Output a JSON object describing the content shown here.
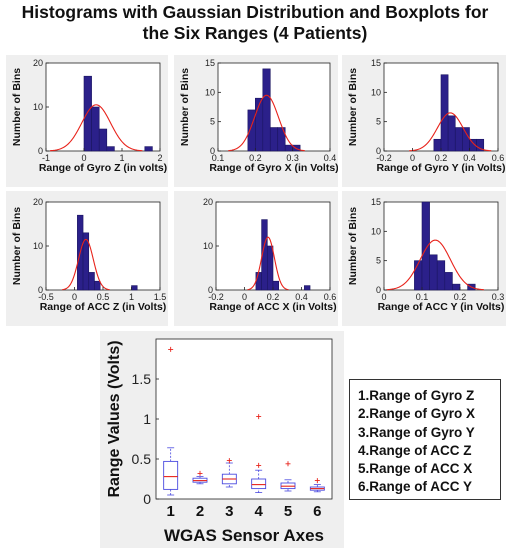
{
  "title": {
    "line1": "Histograms with Gaussian Distribution and Boxplots for",
    "line2": "the Six Ranges (4 Patients)"
  },
  "colors": {
    "bar": "#2b208a",
    "bar_edge": "#1a1460",
    "curve": "#e8231b",
    "box": "#4a4ae0",
    "median": "#e8231b",
    "outlier": "#e8231b",
    "panel_bg": "#efefef"
  },
  "chart_data": [
    {
      "type": "bar",
      "title": "",
      "xlabel": "Range of Gyro Z (in volts)",
      "ylabel": "Number of Bins",
      "xlim": [
        -1,
        2
      ],
      "ylim": [
        0,
        20
      ],
      "xticks": [
        "-1",
        "0",
        "1",
        "2"
      ],
      "yticks": [
        "0",
        "10",
        "20"
      ],
      "bins": [
        [
          0,
          0.2,
          17
        ],
        [
          0.2,
          0.4,
          10
        ],
        [
          0.4,
          0.6,
          5
        ],
        [
          0.6,
          0.8,
          1
        ],
        [
          1.6,
          1.8,
          1
        ]
      ],
      "gaussian": {
        "mean": 0.32,
        "sd": 0.38,
        "peak": 10.5
      }
    },
    {
      "type": "bar",
      "title": "",
      "xlabel": "Range of Gyro X (in Volts)",
      "ylabel": "Number of Bins",
      "xlim": [
        0.1,
        0.4
      ],
      "ylim": [
        0,
        15
      ],
      "xticks": [
        "0.1",
        "0.2",
        "0.3",
        "0.4"
      ],
      "yticks": [
        "0",
        "5",
        "10",
        "15"
      ],
      "bins": [
        [
          0.18,
          0.2,
          7
        ],
        [
          0.2,
          0.22,
          9
        ],
        [
          0.22,
          0.24,
          14
        ],
        [
          0.24,
          0.26,
          4
        ],
        [
          0.26,
          0.28,
          4
        ],
        [
          0.28,
          0.3,
          1
        ],
        [
          0.3,
          0.32,
          1
        ]
      ],
      "gaussian": {
        "mean": 0.23,
        "sd": 0.032,
        "peak": 9.5
      }
    },
    {
      "type": "bar",
      "title": "",
      "xlabel": "Range of Gyro Y (in Volts)",
      "ylabel": "Number of Bins",
      "xlim": [
        -0.2,
        0.6
      ],
      "ylim": [
        0,
        15
      ],
      "xticks": [
        "-0.2",
        "0",
        "0.2",
        "0.4",
        "0.6"
      ],
      "yticks": [
        "0",
        "5",
        "10",
        "15"
      ],
      "bins": [
        [
          0.15,
          0.2,
          2
        ],
        [
          0.2,
          0.25,
          13
        ],
        [
          0.25,
          0.3,
          6
        ],
        [
          0.3,
          0.35,
          4
        ],
        [
          0.35,
          0.4,
          4
        ],
        [
          0.4,
          0.45,
          2
        ],
        [
          0.45,
          0.5,
          2
        ]
      ],
      "gaussian": {
        "mean": 0.265,
        "sd": 0.09,
        "peak": 6.5
      }
    },
    {
      "type": "bar",
      "title": "",
      "xlabel": "Range of ACC Z (in Volts)",
      "ylabel": "Number of Bins",
      "xlim": [
        -0.5,
        1.5
      ],
      "ylim": [
        0,
        20
      ],
      "xticks": [
        "-0.5",
        "0",
        "0.5",
        "1",
        "1.5"
      ],
      "yticks": [
        "0",
        "10",
        "20"
      ],
      "bins": [
        [
          0.05,
          0.15,
          17
        ],
        [
          0.15,
          0.25,
          13
        ],
        [
          0.25,
          0.35,
          4
        ],
        [
          0.35,
          0.45,
          2
        ],
        [
          1.0,
          1.1,
          1
        ]
      ],
      "gaussian": {
        "mean": 0.2,
        "sd": 0.13,
        "peak": 11.5
      }
    },
    {
      "type": "bar",
      "title": "",
      "xlabel": "Range of ACC X (in Volts)",
      "ylabel": "",
      "xlim": [
        -0.2,
        0.6
      ],
      "ylim": [
        0,
        20
      ],
      "xticks": [
        "-0.2",
        "0",
        "0.2",
        "0.4",
        "0.6"
      ],
      "yticks": [
        "0",
        "10",
        "20"
      ],
      "bins": [
        [
          0.08,
          0.12,
          4
        ],
        [
          0.12,
          0.16,
          16
        ],
        [
          0.16,
          0.2,
          10
        ],
        [
          0.2,
          0.24,
          2
        ],
        [
          0.42,
          0.46,
          1
        ]
      ],
      "gaussian": {
        "mean": 0.165,
        "sd": 0.045,
        "peak": 12
      }
    },
    {
      "type": "bar",
      "title": "",
      "xlabel": "Range of ACC Y (in Volts)",
      "ylabel": "Number of Bins",
      "xlim": [
        0,
        0.3
      ],
      "ylim": [
        0,
        15
      ],
      "xticks": [
        "0",
        "0.1",
        "0.2",
        "0.3"
      ],
      "yticks": [
        "0",
        "5",
        "10",
        "15"
      ],
      "bins": [
        [
          0.08,
          0.1,
          5
        ],
        [
          0.1,
          0.12,
          15
        ],
        [
          0.12,
          0.14,
          6
        ],
        [
          0.14,
          0.16,
          5
        ],
        [
          0.16,
          0.18,
          3
        ],
        [
          0.18,
          0.2,
          1
        ],
        [
          0.22,
          0.24,
          1
        ]
      ],
      "gaussian": {
        "mean": 0.135,
        "sd": 0.04,
        "peak": 8.5
      }
    },
    {
      "type": "boxplot",
      "title": "",
      "xlabel": "WGAS Sensor Axes",
      "ylabel": "Range Values (Volts)",
      "categories": [
        "1",
        "2",
        "3",
        "4",
        "5",
        "6"
      ],
      "ylim": [
        0,
        2
      ],
      "yticks": [
        "0",
        "0.5",
        "1",
        "1.5"
      ],
      "boxes": [
        {
          "whisker_low": 0.05,
          "q1": 0.12,
          "median": 0.28,
          "q3": 0.47,
          "whisker_high": 0.64,
          "outliers": [
            1.87
          ]
        },
        {
          "whisker_low": 0.19,
          "q1": 0.21,
          "median": 0.23,
          "q3": 0.26,
          "whisker_high": 0.28,
          "outliers": [
            0.32
          ]
        },
        {
          "whisker_low": 0.15,
          "q1": 0.19,
          "median": 0.25,
          "q3": 0.31,
          "whisker_high": 0.45,
          "outliers": [
            0.48
          ]
        },
        {
          "whisker_low": 0.08,
          "q1": 0.13,
          "median": 0.18,
          "q3": 0.25,
          "whisker_high": 0.36,
          "outliers": [
            0.42,
            1.03
          ]
        },
        {
          "whisker_low": 0.1,
          "q1": 0.13,
          "median": 0.16,
          "q3": 0.2,
          "whisker_high": 0.24,
          "outliers": [
            0.44
          ]
        },
        {
          "whisker_low": 0.09,
          "q1": 0.11,
          "median": 0.13,
          "q3": 0.15,
          "whisker_high": 0.18,
          "outliers": [
            0.23
          ]
        }
      ]
    }
  ],
  "legend": {
    "items": [
      "1.Range of Gyro Z",
      "2.Range of Gyro X",
      "3.Range of Gyro Y",
      "4.Range of ACC Z",
      "5.Range of ACC X",
      "6.Range of ACC Y"
    ]
  }
}
